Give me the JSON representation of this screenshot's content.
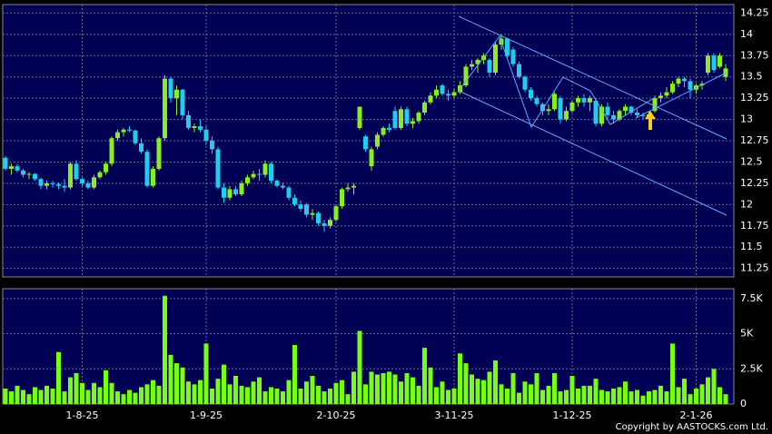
{
  "chart_data": {
    "type": "candlestick",
    "categories": [
      null,
      null,
      null,
      null,
      null,
      null,
      null,
      null,
      null,
      null,
      null,
      null,
      null,
      "1-8-25",
      null,
      null,
      null,
      null,
      null,
      null,
      null,
      null,
      null,
      null,
      null,
      null,
      null,
      null,
      null,
      null,
      null,
      null,
      null,
      null,
      "1-9-25",
      null,
      null,
      null,
      null,
      null,
      null,
      null,
      null,
      null,
      null,
      null,
      null,
      null,
      null,
      null,
      null,
      null,
      null,
      null,
      null,
      null,
      "2-10-25",
      null,
      null,
      null,
      null,
      null,
      null,
      null,
      null,
      null,
      null,
      null,
      null,
      null,
      null,
      null,
      null,
      null,
      null,
      null,
      "3-11-25",
      null,
      null,
      null,
      null,
      null,
      null,
      null,
      null,
      null,
      null,
      null,
      null,
      null,
      null,
      null,
      null,
      null,
      null,
      null,
      "1-12-25",
      null,
      null,
      null,
      null,
      null,
      null,
      null,
      null,
      null,
      null,
      null,
      null,
      null,
      null,
      null,
      null,
      null,
      null,
      null,
      null,
      "2-1-26",
      null,
      null,
      null,
      null,
      null
    ],
    "open": [
      12.55,
      12.42,
      12.45,
      12.4,
      12.35,
      12.36,
      12.3,
      12.22,
      12.25,
      12.24,
      12.22,
      12.2,
      12.48,
      12.3,
      12.25,
      12.2,
      12.32,
      12.38,
      12.48,
      12.78,
      12.85,
      12.88,
      12.87,
      12.72,
      12.62,
      12.22,
      12.42,
      12.78,
      13.48,
      13.25,
      13.35,
      13.05,
      12.9,
      12.92,
      12.88,
      12.75,
      12.65,
      12.2,
      12.08,
      12.18,
      12.12,
      12.25,
      12.32,
      12.36,
      12.35,
      12.48,
      12.28,
      12.22,
      12.2,
      12.08,
      12.0,
      12.0,
      11.88,
      11.9,
      11.78,
      11.75,
      11.82,
      11.98,
      12.18,
      12.2,
      12.9,
      12.8,
      12.45,
      12.68,
      12.82,
      12.9,
      13.1,
      12.9,
      13.12,
      12.95,
      12.98,
      13.08,
      13.2,
      13.28,
      13.4,
      13.3,
      13.28,
      13.32,
      13.4,
      13.62,
      13.65,
      13.7,
      13.7,
      13.55,
      13.88,
      13.95,
      13.82,
      13.65,
      13.5,
      13.35,
      13.25,
      13.18,
      13.1,
      13.12,
      13.25,
      13.0,
      13.1,
      13.2,
      13.25,
      13.2,
      13.22,
      12.95,
      13.15,
      13.05,
      13.0,
      13.1,
      13.15,
      13.08,
      13.05,
      13.04,
      13.1,
      13.25,
      13.28,
      13.32,
      13.42,
      13.48,
      13.45,
      13.35,
      13.4,
      13.55,
      13.75,
      13.62,
      13.5
    ],
    "high": [
      12.57,
      12.48,
      12.48,
      12.42,
      12.38,
      12.37,
      12.32,
      12.28,
      12.28,
      12.26,
      12.3,
      12.5,
      12.52,
      12.32,
      12.28,
      12.35,
      12.4,
      12.5,
      12.8,
      12.88,
      12.9,
      12.92,
      12.88,
      12.78,
      12.65,
      12.45,
      12.8,
      13.52,
      13.5,
      13.4,
      13.36,
      13.1,
      12.95,
      13.0,
      12.92,
      12.8,
      12.68,
      12.25,
      12.22,
      12.22,
      12.28,
      12.35,
      12.4,
      12.42,
      12.52,
      12.5,
      12.3,
      12.26,
      12.22,
      12.12,
      12.05,
      12.02,
      11.95,
      11.92,
      11.82,
      11.85,
      12.0,
      12.2,
      12.25,
      12.25,
      13.15,
      12.82,
      12.68,
      12.85,
      12.92,
      12.95,
      13.15,
      13.15,
      13.15,
      13.02,
      13.1,
      13.22,
      13.32,
      13.4,
      13.42,
      13.35,
      13.36,
      13.45,
      13.65,
      13.7,
      13.72,
      13.78,
      13.72,
      13.92,
      14.0,
      13.96,
      13.85,
      13.68,
      13.52,
      13.38,
      13.28,
      13.2,
      13.18,
      13.32,
      13.28,
      13.15,
      13.22,
      13.28,
      13.3,
      13.28,
      13.25,
      13.18,
      13.2,
      13.1,
      13.12,
      13.18,
      13.16,
      13.12,
      13.08,
      13.1,
      13.28,
      13.32,
      13.38,
      13.45,
      13.5,
      13.5,
      13.48,
      13.42,
      13.45,
      13.78,
      13.78,
      13.78,
      13.65
    ],
    "low": [
      12.4,
      12.35,
      12.38,
      12.32,
      12.3,
      12.28,
      12.18,
      12.18,
      12.2,
      12.18,
      12.15,
      12.18,
      12.28,
      12.22,
      12.18,
      12.18,
      12.3,
      12.35,
      12.45,
      12.75,
      12.8,
      12.85,
      12.7,
      12.6,
      12.2,
      12.2,
      12.4,
      12.75,
      13.2,
      13.05,
      13.0,
      12.88,
      12.85,
      12.85,
      12.7,
      12.6,
      12.18,
      12.02,
      12.05,
      12.1,
      12.1,
      12.22,
      12.3,
      12.28,
      12.32,
      12.25,
      12.2,
      12.18,
      12.05,
      11.98,
      11.92,
      11.85,
      11.82,
      11.75,
      11.68,
      11.72,
      11.8,
      11.95,
      12.15,
      12.12,
      12.88,
      12.62,
      12.4,
      12.65,
      12.8,
      12.85,
      12.88,
      12.88,
      12.92,
      12.9,
      12.95,
      13.05,
      13.18,
      13.25,
      13.28,
      13.22,
      13.25,
      13.3,
      13.38,
      13.58,
      13.55,
      13.65,
      13.5,
      13.52,
      13.82,
      13.72,
      13.62,
      13.48,
      13.32,
      13.22,
      13.15,
      13.05,
      13.05,
      13.1,
      12.95,
      12.98,
      13.08,
      13.15,
      13.15,
      13.1,
      12.92,
      12.92,
      13.0,
      12.95,
      12.98,
      13.05,
      13.05,
      13.02,
      13.0,
      13.0,
      13.08,
      13.2,
      13.25,
      13.3,
      13.38,
      13.38,
      13.25,
      13.3,
      13.35,
      13.52,
      13.55,
      13.6,
      13.45
    ],
    "close": [
      12.42,
      12.45,
      12.4,
      12.35,
      12.36,
      12.3,
      12.22,
      12.25,
      12.24,
      12.22,
      12.2,
      12.48,
      12.3,
      12.25,
      12.2,
      12.32,
      12.38,
      12.48,
      12.78,
      12.85,
      12.88,
      12.87,
      12.72,
      12.62,
      12.22,
      12.42,
      12.78,
      13.48,
      13.25,
      13.35,
      13.05,
      12.9,
      12.92,
      12.88,
      12.75,
      12.65,
      12.2,
      12.08,
      12.18,
      12.12,
      12.25,
      12.32,
      12.36,
      12.35,
      12.48,
      12.28,
      12.22,
      12.2,
      12.08,
      12.0,
      11.95,
      11.88,
      11.9,
      11.78,
      11.75,
      11.82,
      11.98,
      12.18,
      12.2,
      12.22,
      13.15,
      12.65,
      12.65,
      12.82,
      12.9,
      12.88,
      12.9,
      13.12,
      12.95,
      12.98,
      13.08,
      13.2,
      13.28,
      13.35,
      13.3,
      13.28,
      13.32,
      13.4,
      13.62,
      13.65,
      13.7,
      13.75,
      13.55,
      13.88,
      13.95,
      13.75,
      13.65,
      13.5,
      13.35,
      13.25,
      13.18,
      13.1,
      13.12,
      13.3,
      13.0,
      13.1,
      13.2,
      13.25,
      13.2,
      13.25,
      12.95,
      13.15,
      13.05,
      13.0,
      13.1,
      13.15,
      13.08,
      13.05,
      13.04,
      13.06,
      13.25,
      13.28,
      13.32,
      13.42,
      13.48,
      13.45,
      13.35,
      13.4,
      13.42,
      13.75,
      13.58,
      13.75,
      13.6
    ],
    "up_color": "#88ee22",
    "down_color": "#22ccee",
    "ylim": [
      11.15,
      14.35
    ],
    "yticks": [
      14.25,
      14,
      13.75,
      13.5,
      13.25,
      13,
      12.75,
      12.5,
      12.25,
      12,
      11.75,
      11.5,
      11.25
    ],
    "grid": true,
    "volume": {
      "color": "#77ff11",
      "values": [
        1100,
        900,
        1300,
        1000,
        700,
        1200,
        1000,
        1300,
        1100,
        3700,
        900,
        1900,
        2200,
        1500,
        1000,
        1500,
        1200,
        2400,
        1500,
        900,
        700,
        1000,
        800,
        1200,
        1400,
        1700,
        1300,
        7700,
        3500,
        2900,
        2600,
        1600,
        1400,
        1700,
        4300,
        1100,
        1800,
        2800,
        1400,
        2000,
        1300,
        1200,
        1600,
        1900,
        900,
        1200,
        1100,
        900,
        1700,
        4200,
        1100,
        1600,
        2000,
        1300,
        900,
        1100,
        1500,
        1700,
        700,
        2300,
        5200,
        1400,
        2300,
        2100,
        2200,
        2300,
        2100,
        1600,
        2200,
        1900,
        1300,
        4000,
        2600,
        1200,
        1600,
        1000,
        1100,
        3600,
        2900,
        2100,
        1800,
        1700,
        2300,
        3100,
        1400,
        1100,
        2200,
        800,
        1600,
        1400,
        2200,
        1000,
        1300,
        2200,
        900,
        1000,
        2000,
        1100,
        1300,
        1300,
        1800,
        1000,
        900,
        1100,
        1200,
        1600,
        900,
        1000,
        600,
        900,
        1000,
        1300,
        900,
        4300,
        1200,
        1800,
        700,
        1100,
        1400,
        1900,
        2500,
        1200,
        700
      ],
      "ylim": [
        0,
        8200
      ],
      "yticks": [
        0,
        {
          "value": 2500,
          "label": "2.5K"
        },
        {
          "value": 5000,
          "label": "5K"
        },
        {
          "value": 7500,
          "label": "7.5K"
        }
      ]
    },
    "copyright": "Copyright by AASTOCKS.com Ltd."
  }
}
